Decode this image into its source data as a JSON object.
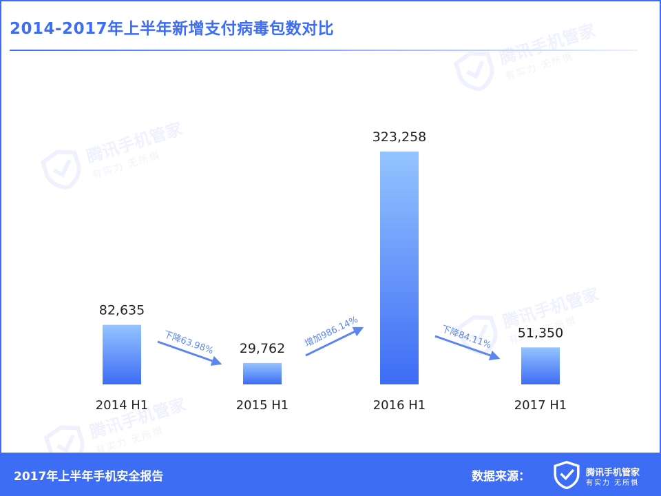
{
  "title": "2014-2017年上半年新增支付病毒包数对比",
  "brand": {
    "name": "腾讯手机管家",
    "slogan": "有实力 无所惧"
  },
  "footer": {
    "report": "2017年上半年手机安全报告",
    "source_label": "数据来源："
  },
  "colors": {
    "accent": "#3d6cf5",
    "bar_top": "#94c4ff",
    "bar_bottom": "#3d6cf5",
    "arrow": "#5b86f0"
  },
  "chart_data": {
    "type": "bar",
    "title": "2014-2017年上半年新增支付病毒包数对比",
    "categories": [
      "2014 H1",
      "2015 H1",
      "2016 H1",
      "2017 H1"
    ],
    "values": [
      82635,
      29762,
      323258,
      51350
    ],
    "value_labels": [
      "82,635",
      "29,762",
      "323,258",
      "51,350"
    ],
    "ylim": [
      0,
      323258
    ],
    "grid": false,
    "legend": "none",
    "annotations": [
      {
        "from": "2014 H1",
        "to": "2015 H1",
        "text": "下降63.98%",
        "direction": "down"
      },
      {
        "from": "2015 H1",
        "to": "2016 H1",
        "text": "增加986.14%",
        "direction": "up"
      },
      {
        "from": "2016 H1",
        "to": "2017 H1",
        "text": "下降84.11%",
        "direction": "down"
      }
    ]
  }
}
